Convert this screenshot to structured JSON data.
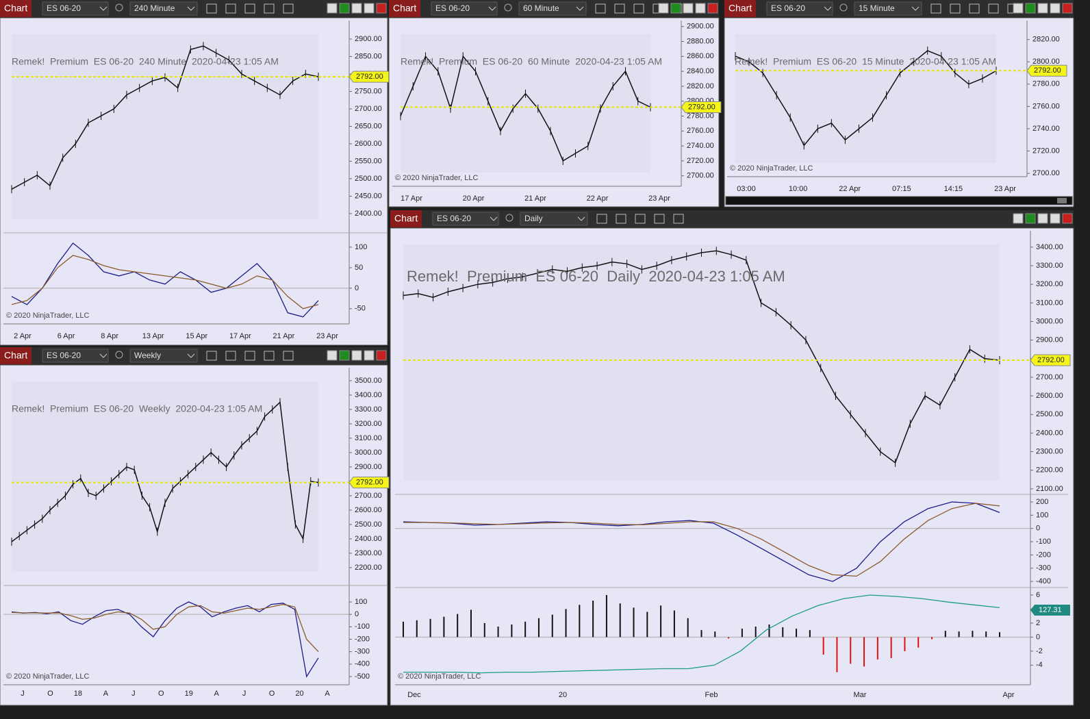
{
  "toolbars": [
    {
      "label": "Chart",
      "instrument": "ES 06-20",
      "interval": "240 Minute"
    },
    {
      "label": "Chart",
      "instrument": "ES 06-20",
      "interval": "60 Minute"
    },
    {
      "label": "Chart",
      "instrument": "ES 06-20",
      "interval": "15 Minute"
    },
    {
      "label": "Chart",
      "instrument": "ES 06-20",
      "interval": "Weekly"
    },
    {
      "label": "Chart",
      "instrument": "ES 06-20",
      "interval": "Daily"
    }
  ],
  "chart_data": [
    {
      "type": "line",
      "title": "Remek!  Premium  ES 06-20  240 Minute  2020-04-23 1:05 AM",
      "copyright": "© 2020 NinjaTrader, LLC",
      "ylim": [
        2345,
        2953
      ],
      "yticks": [
        {
          "value": 2900,
          "label": "2900.00"
        },
        {
          "value": 2850,
          "label": "2850.00"
        },
        {
          "value": 2800,
          "label": "2800.00"
        },
        {
          "value": 2750,
          "label": "2750.00"
        },
        {
          "value": 2700,
          "label": "2700.00"
        },
        {
          "value": 2650,
          "label": "2650.00"
        },
        {
          "value": 2600,
          "label": "2600.00"
        },
        {
          "value": 2550,
          "label": "2550.00"
        },
        {
          "value": 2500,
          "label": "2500.00"
        },
        {
          "value": 2450,
          "label": "2450.00"
        },
        {
          "value": 2400,
          "label": "2400.00"
        }
      ],
      "price_marker": {
        "value": 2792,
        "label": "2792.00"
      },
      "xticks": [
        "2 Apr",
        "6 Apr",
        "8 Apr",
        "13 Apr",
        "15 Apr",
        "17 Apr",
        "21 Apr",
        "23 Apr"
      ],
      "series": [
        {
          "color": "#111111",
          "values": [
            2470,
            2490,
            2510,
            2480,
            2560,
            2600,
            2660,
            2680,
            2700,
            2740,
            2760,
            2780,
            2790,
            2760,
            2870,
            2880,
            2860,
            2840,
            2800,
            2780,
            2760,
            2740,
            2780,
            2800,
            2792
          ]
        }
      ],
      "panes": [
        {
          "ylim": [
            -87,
            135
          ],
          "yticks": [
            100,
            50,
            0,
            -50
          ],
          "series": [
            {
              "color": "#1a1a8c",
              "values": [
                -20,
                -40,
                0,
                60,
                110,
                80,
                40,
                30,
                40,
                20,
                10,
                40,
                20,
                -10,
                0,
                30,
                60,
                20,
                -60,
                -70,
                -30
              ]
            },
            {
              "color": "#8b5a2b",
              "values": [
                -40,
                -30,
                0,
                50,
                80,
                70,
                55,
                45,
                40,
                35,
                30,
                25,
                20,
                10,
                0,
                10,
                30,
                20,
                -20,
                -50,
                -40
              ]
            }
          ]
        }
      ]
    },
    {
      "type": "line",
      "title": "Remek!  Premium  ES 06-20  60 Minute  2020-04-23 1:05 AM",
      "copyright": "© 2020 NinjaTrader, LLC",
      "ylim": [
        2686,
        2908
      ],
      "yticks": [
        {
          "value": 2900,
          "label": "2900.00"
        },
        {
          "value": 2880,
          "label": "2880.00"
        },
        {
          "value": 2860,
          "label": "2860.00"
        },
        {
          "value": 2840,
          "label": "2840.00"
        },
        {
          "value": 2820,
          "label": "2820.00"
        },
        {
          "value": 2800,
          "label": "2800.00"
        },
        {
          "value": 2780,
          "label": "2780.00"
        },
        {
          "value": 2760,
          "label": "2760.00"
        },
        {
          "value": 2740,
          "label": "2740.00"
        },
        {
          "value": 2720,
          "label": "2720.00"
        },
        {
          "value": 2700,
          "label": "2700.00"
        }
      ],
      "price_marker": {
        "value": 2792,
        "label": "2792.00"
      },
      "xticks": [
        "17 Apr",
        "20 Apr",
        "21 Apr",
        "22 Apr",
        "23 Apr"
      ],
      "series": [
        {
          "color": "#111111",
          "values": [
            2780,
            2820,
            2860,
            2840,
            2790,
            2860,
            2840,
            2800,
            2760,
            2790,
            2810,
            2790,
            2760,
            2720,
            2730,
            2740,
            2790,
            2820,
            2840,
            2800,
            2792
          ]
        }
      ],
      "panes": []
    },
    {
      "type": "line",
      "title": "Remek!  Premium  ES 06-20  15 Minute  2020-04-23 1:05 AM",
      "copyright": "© 2020 NinjaTrader, LLC",
      "ylim": [
        2697,
        2837
      ],
      "yticks": [
        {
          "value": 2820,
          "label": "2820.00"
        },
        {
          "value": 2800,
          "label": "2800.00"
        },
        {
          "value": 2780,
          "label": "2780.00"
        },
        {
          "value": 2760,
          "label": "2760.00"
        },
        {
          "value": 2740,
          "label": "2740.00"
        },
        {
          "value": 2720,
          "label": "2720.00"
        },
        {
          "value": 2700,
          "label": "2700.00"
        }
      ],
      "price_marker": {
        "value": 2792,
        "label": "2792.00"
      },
      "xticks": [
        "03:00",
        "10:00",
        "22 Apr",
        "07:15",
        "14:15",
        "23 Apr"
      ],
      "series": [
        {
          "color": "#111111",
          "values": [
            2805,
            2800,
            2790,
            2770,
            2750,
            2725,
            2740,
            2745,
            2730,
            2740,
            2750,
            2770,
            2790,
            2800,
            2810,
            2805,
            2790,
            2780,
            2785,
            2792
          ]
        }
      ],
      "panes": []
    },
    {
      "type": "line",
      "title": "Remek!  Premium  ES 06-20  Weekly  2020-04-23 1:05 AM",
      "copyright": "© 2020 NinjaTrader, LLC",
      "ylim": [
        2076,
        3590
      ],
      "yticks": [
        {
          "value": 3500,
          "label": "3500.00"
        },
        {
          "value": 3400,
          "label": "3400.00"
        },
        {
          "value": 3300,
          "label": "3300.00"
        },
        {
          "value": 3200,
          "label": "3200.00"
        },
        {
          "value": 3100,
          "label": "3100.00"
        },
        {
          "value": 3000,
          "label": "3000.00"
        },
        {
          "value": 2900,
          "label": "2900.00"
        },
        {
          "value": 2800,
          "label": "2800.00"
        },
        {
          "value": 2700,
          "label": "2700.00"
        },
        {
          "value": 2600,
          "label": "2600.00"
        },
        {
          "value": 2500,
          "label": "2500.00"
        },
        {
          "value": 2400,
          "label": "2400.00"
        },
        {
          "value": 2300,
          "label": "2300.00"
        },
        {
          "value": 2200,
          "label": "2200.00"
        }
      ],
      "price_marker": {
        "value": 2792,
        "label": "2792.00"
      },
      "xticks": [
        "J",
        "O",
        "18",
        "A",
        "J",
        "O",
        "19",
        "A",
        "J",
        "O",
        "20",
        "A"
      ],
      "series": [
        {
          "color": "#111111",
          "values": [
            2380,
            2420,
            2460,
            2500,
            2540,
            2600,
            2650,
            2700,
            2780,
            2820,
            2720,
            2700,
            2750,
            2800,
            2850,
            2900,
            2880,
            2700,
            2620,
            2450,
            2650,
            2750,
            2800,
            2850,
            2900,
            2950,
            3000,
            2950,
            2900,
            2980,
            3050,
            3100,
            3150,
            3250,
            3300,
            3350,
            2900,
            2500,
            2400,
            2800,
            2792
          ]
        }
      ],
      "panes": [
        {
          "ylim": [
            -566,
            232
          ],
          "yticks": [
            100,
            0,
            -100,
            -200,
            -300,
            -400,
            -500
          ],
          "series": [
            {
              "color": "#1a1a8c",
              "values": [
                20,
                10,
                15,
                5,
                20,
                -50,
                -80,
                -20,
                30,
                40,
                0,
                -100,
                -180,
                -50,
                50,
                100,
                60,
                -20,
                20,
                50,
                70,
                20,
                80,
                90,
                40,
                -500,
                -350
              ]
            },
            {
              "color": "#8b5a2b",
              "values": [
                15,
                12,
                12,
                10,
                12,
                -10,
                -40,
                -30,
                0,
                20,
                10,
                -40,
                -120,
                -100,
                0,
                60,
                70,
                20,
                10,
                30,
                50,
                40,
                60,
                80,
                60,
                -200,
                -300
              ]
            }
          ]
        }
      ]
    },
    {
      "type": "line",
      "title": "Remek!  Premium  ES 06-20  Daily  2020-04-23 1:05 AM",
      "copyright": "© 2020 NinjaTrader, LLC",
      "ylim": [
        2070,
        3488
      ],
      "yticks": [
        {
          "value": 3400,
          "label": "3400.00"
        },
        {
          "value": 3300,
          "label": "3300.00"
        },
        {
          "value": 3200,
          "label": "3200.00"
        },
        {
          "value": 3100,
          "label": "3100.00"
        },
        {
          "value": 3000,
          "label": "3000.00"
        },
        {
          "value": 2900,
          "label": "2900.00"
        },
        {
          "value": 2800,
          "label": "2800.00"
        },
        {
          "value": 2700,
          "label": "2700.00"
        },
        {
          "value": 2600,
          "label": "2600.00"
        },
        {
          "value": 2500,
          "label": "2500.00"
        },
        {
          "value": 2400,
          "label": "2400.00"
        },
        {
          "value": 2300,
          "label": "2300.00"
        },
        {
          "value": 2200,
          "label": "2200.00"
        },
        {
          "value": 2100,
          "label": "2100.00"
        }
      ],
      "price_marker": {
        "value": 2792,
        "label": "2792.00"
      },
      "xticks": [
        "Dec",
        "20",
        "Feb",
        "Mar",
        "Apr"
      ],
      "series": [
        {
          "color": "#111111",
          "values": [
            3140,
            3150,
            3130,
            3160,
            3180,
            3200,
            3210,
            3230,
            3240,
            3260,
            3280,
            3270,
            3290,
            3300,
            3320,
            3310,
            3280,
            3300,
            3330,
            3350,
            3370,
            3380,
            3360,
            3330,
            3100,
            3050,
            2980,
            2900,
            2750,
            2600,
            2500,
            2400,
            2300,
            2240,
            2450,
            2600,
            2550,
            2700,
            2850,
            2800,
            2792
          ]
        }
      ],
      "panes": [
        {
          "ylim": [
            -446,
            257
          ],
          "yticks": [
            200,
            100,
            0,
            -100,
            -200,
            -300,
            -400
          ],
          "series": [
            {
              "color": "#1a1a8c",
              "values": [
                50,
                45,
                40,
                25,
                30,
                40,
                50,
                45,
                30,
                20,
                30,
                50,
                60,
                40,
                -50,
                -150,
                -250,
                -350,
                -400,
                -300,
                -100,
                50,
                150,
                200,
                190,
                120
              ]
            },
            {
              "color": "#8b5a2b",
              "values": [
                45,
                45,
                42,
                35,
                30,
                35,
                42,
                45,
                40,
                30,
                28,
                38,
                50,
                50,
                0,
                -80,
                -180,
                -280,
                -350,
                -360,
                -250,
                -80,
                60,
                150,
                190,
                170
              ]
            }
          ]
        },
        {
          "ylim": [
            -6.8,
            7.07
          ],
          "yticks": [
            6,
            4,
            2,
            0,
            -2,
            -4
          ],
          "marker": {
            "value": 127.31,
            "label": "127.31"
          },
          "bars": [
            2.2,
            2.4,
            2.6,
            2.9,
            3.3,
            3.9,
            2.0,
            1.5,
            1.8,
            2.2,
            2.7,
            3.2,
            4.0,
            4.6,
            5.2,
            6.0,
            4.8,
            4.2,
            3.6,
            4.5,
            3.8,
            2.7,
            1.0,
            0.8,
            -0.2,
            1.2,
            1.5,
            1.8,
            1.4,
            1.2,
            1.0,
            -2.5,
            -5.0,
            -3.8,
            -4.2,
            -3.2,
            -3.0,
            -2.0,
            -1.5,
            -0.3,
            0.9,
            0.8,
            0.9,
            0.8,
            0.7
          ],
          "series": [
            {
              "color": "#1e9a8a",
              "values": [
                -5,
                -5,
                -5,
                -5.1,
                -5,
                -5,
                -4.9,
                -4.8,
                -4.7,
                -4.6,
                -4.5,
                -4.5,
                -4,
                -2,
                1,
                3,
                4.5,
                5.5,
                6,
                5.8,
                5.5,
                5,
                4.6,
                4.2
              ]
            }
          ]
        }
      ]
    }
  ]
}
